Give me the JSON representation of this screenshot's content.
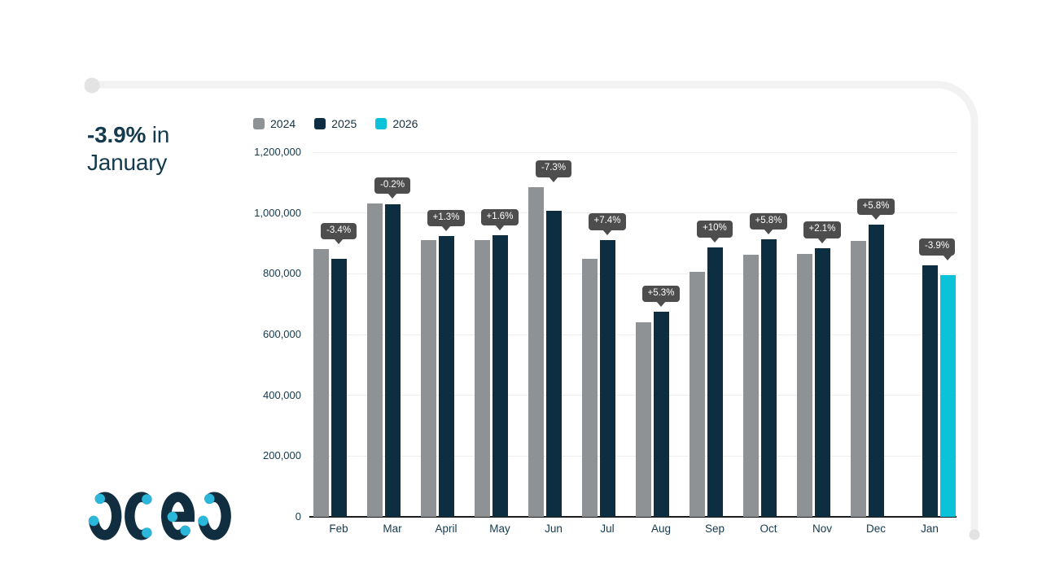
{
  "header": {
    "highlight": "-3.9%",
    "suffix": " in",
    "line2": "January"
  },
  "logo": {
    "text": "acea"
  },
  "chart_data": {
    "type": "bar",
    "title": "-3.9% in January",
    "xlabel": "",
    "ylabel": "",
    "grid": true,
    "legend_position": "top-left",
    "ylim": [
      0,
      1200000
    ],
    "yticks": [
      {
        "value": 0,
        "label": "0"
      },
      {
        "value": 200000,
        "label": "200,000"
      },
      {
        "value": 400000,
        "label": "400,000"
      },
      {
        "value": 600000,
        "label": "600,000"
      },
      {
        "value": 800000,
        "label": "800,000"
      },
      {
        "value": 1000000,
        "label": "1,000,000"
      },
      {
        "value": 1200000,
        "label": "1,200,000"
      }
    ],
    "categories": [
      "Feb",
      "Mar",
      "April",
      "May",
      "Jun",
      "Jul",
      "Aug",
      "Sep",
      "Oct",
      "Nov",
      "Dec",
      "Jan"
    ],
    "series": [
      {
        "name": "2024",
        "color": "#8f9294",
        "values": [
          880000,
          1030000,
          912000,
          911000,
          1086000,
          849000,
          641000,
          806000,
          863000,
          866000,
          908000,
          null
        ]
      },
      {
        "name": "2025",
        "color": "#0c2e40",
        "values": [
          850000,
          1028000,
          924000,
          926000,
          1007000,
          912000,
          675000,
          887000,
          913000,
          884000,
          961000,
          828000
        ]
      },
      {
        "name": "2026",
        "color": "#0cc2d9",
        "values": [
          null,
          null,
          null,
          null,
          null,
          null,
          null,
          null,
          null,
          null,
          null,
          796000
        ]
      }
    ],
    "badge_labels": [
      "-3.4%",
      "-0.2%",
      "+1.3%",
      "+1.6%",
      "-7.3%",
      "+7.4%",
      "+5.3%",
      "+10%",
      "+5.8%",
      "+2.1%",
      "+5.8%",
      "-3.9%"
    ],
    "badge_color": "#4d4d4d"
  }
}
